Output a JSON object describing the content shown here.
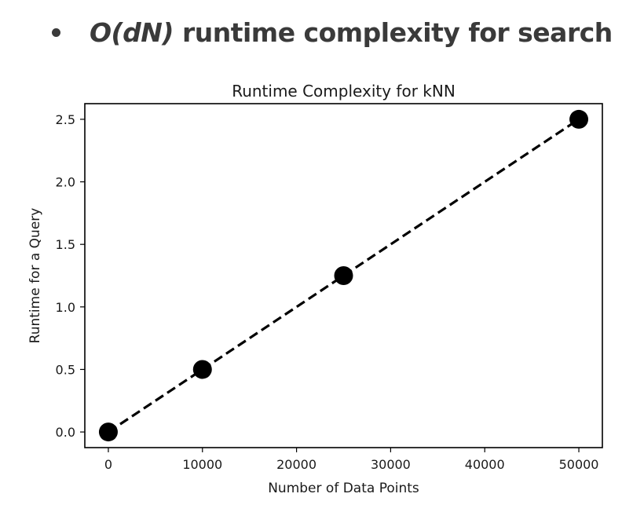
{
  "slide": {
    "bullet_math": "O(dN)",
    "bullet_rest": " runtime complexity for search"
  },
  "chart_data": {
    "type": "line",
    "title": "Runtime Complexity for kNN",
    "xlabel": "Number of Data Points",
    "ylabel": "Runtime for a Query",
    "series": [
      {
        "x": [
          0,
          10000,
          25000,
          50000
        ],
        "y": [
          0.0,
          0.5,
          1.25,
          2.5
        ],
        "color": "#000000",
        "linestyle": "dashed",
        "marker": "circle"
      }
    ],
    "xticks": [
      0,
      10000,
      20000,
      30000,
      40000,
      50000
    ],
    "xtick_labels": [
      "0",
      "10000",
      "20000",
      "30000",
      "40000",
      "50000"
    ],
    "yticks": [
      0.0,
      0.5,
      1.0,
      1.5,
      2.0,
      2.5
    ],
    "ytick_labels": [
      "0.0",
      "0.5",
      "1.0",
      "1.5",
      "2.0",
      "2.5"
    ],
    "xlim": [
      -2500,
      52500
    ],
    "ylim": [
      -0.125,
      2.625
    ],
    "grid": false,
    "legend": "none"
  }
}
